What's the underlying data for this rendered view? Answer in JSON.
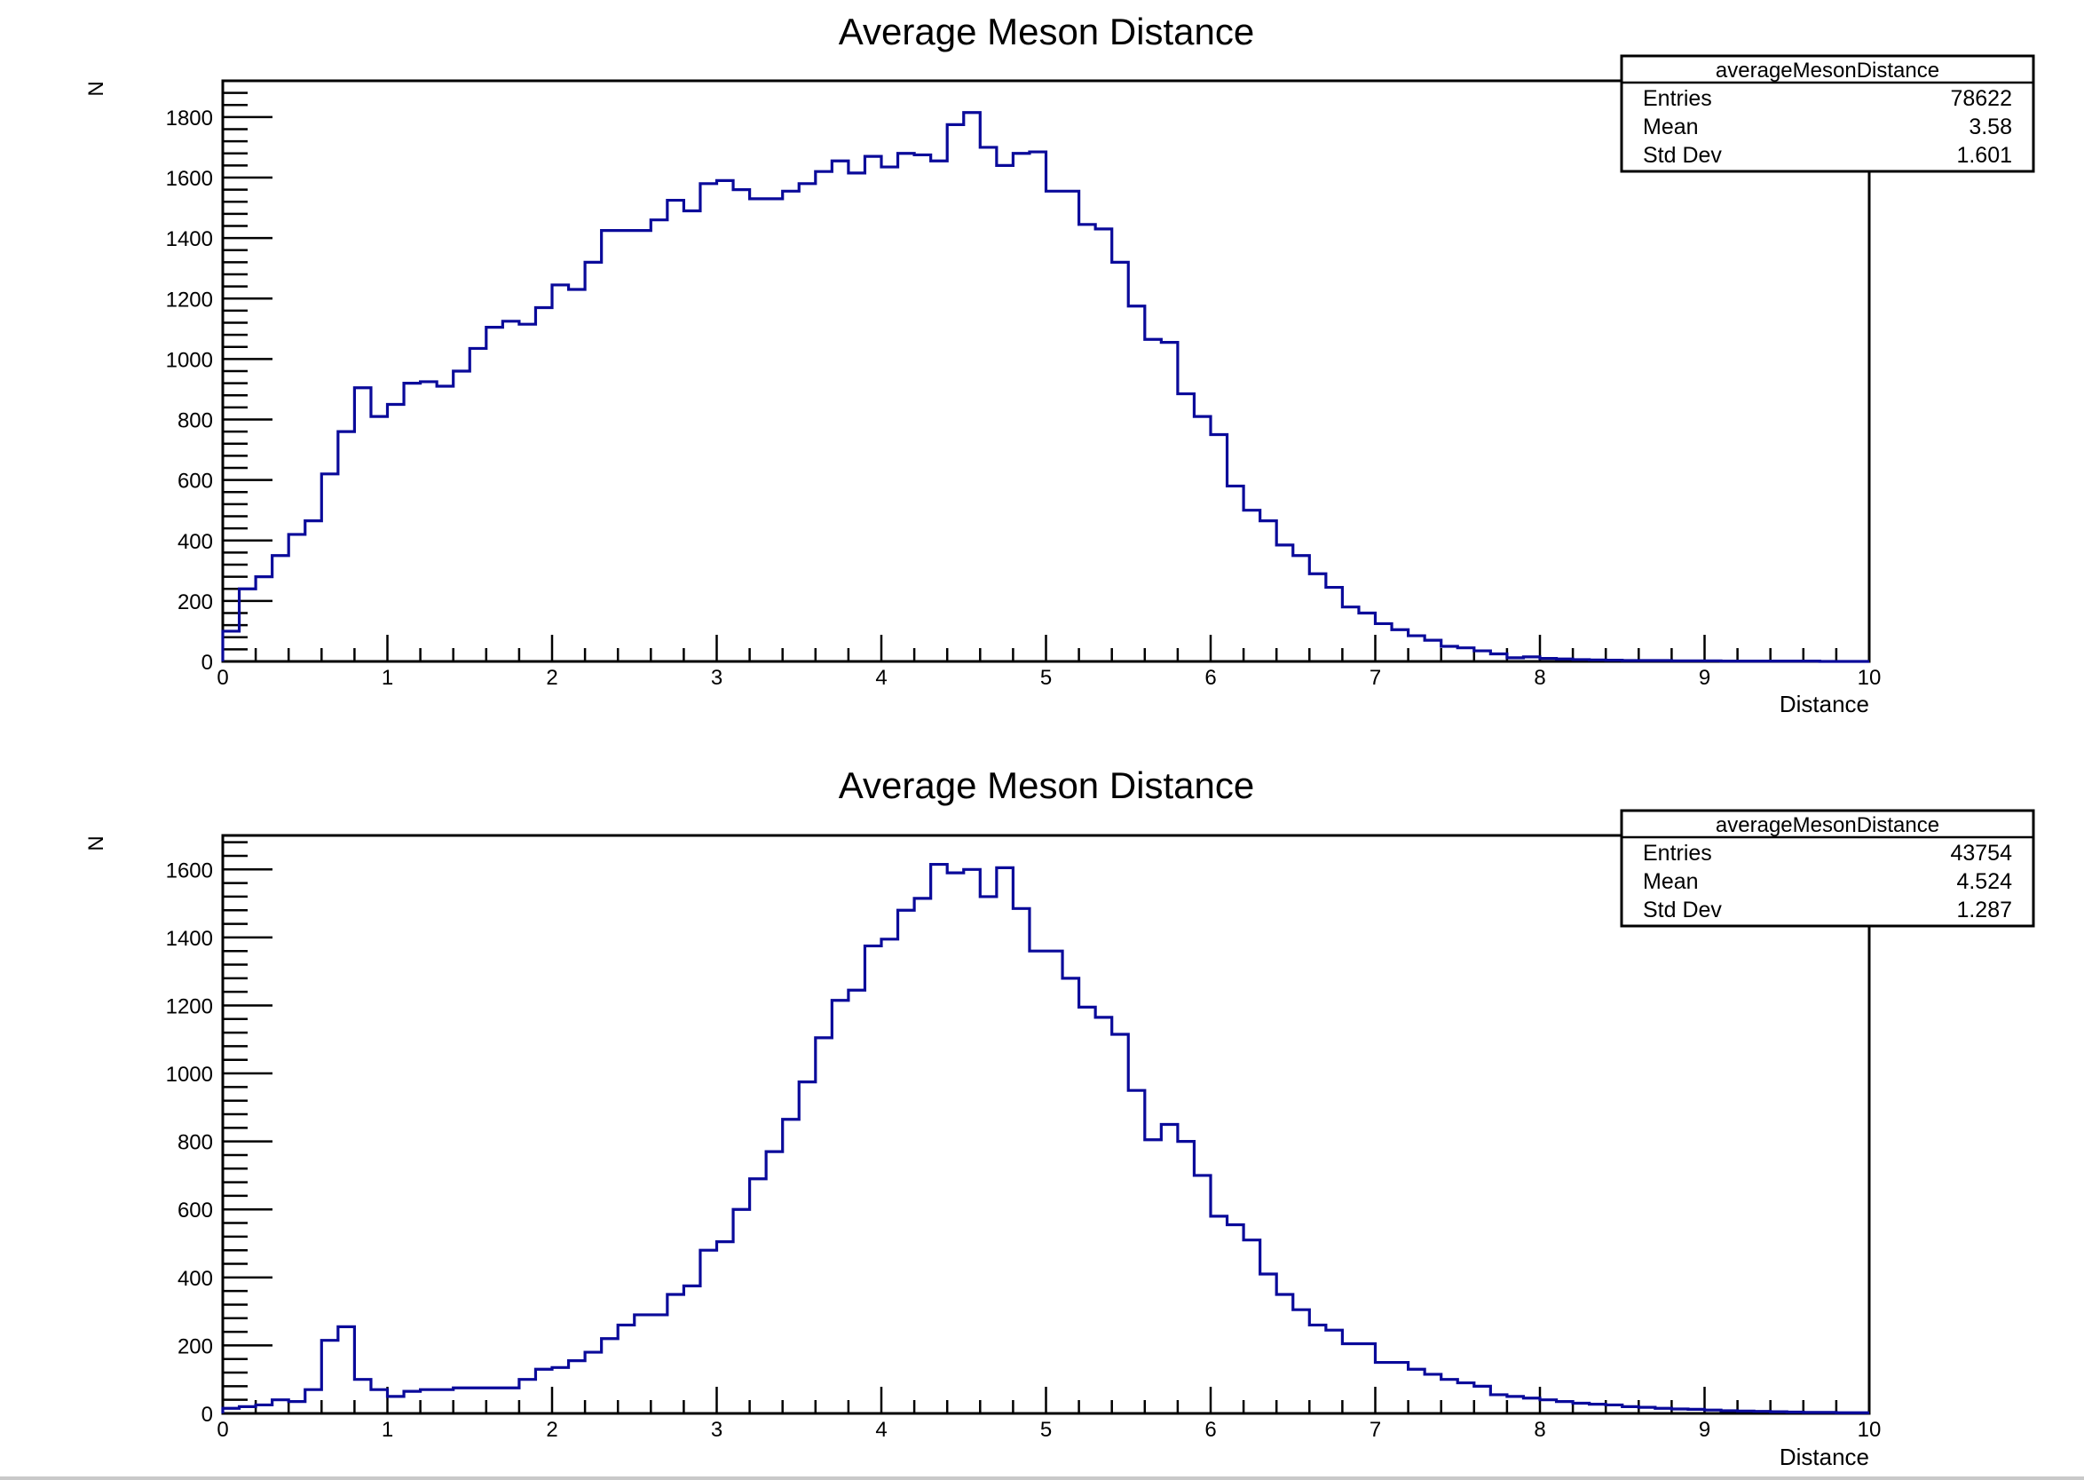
{
  "chart_data": [
    {
      "type": "histogram",
      "title": "Average Meson Distance",
      "xlabel": "Distance",
      "ylabel": "N",
      "xlim": [
        0,
        10
      ],
      "ylim": [
        0,
        1920
      ],
      "x_ticks": [
        0,
        1,
        2,
        3,
        4,
        5,
        6,
        7,
        8,
        9,
        10
      ],
      "y_ticks": [
        0,
        200,
        400,
        600,
        800,
        1000,
        1200,
        1400,
        1600,
        1800
      ],
      "grid": false,
      "bin_width": 0.1,
      "series": [
        {
          "color": "#0a0a9a",
          "values": [
            100,
            240,
            280,
            350,
            420,
            465,
            620,
            760,
            905,
            810,
            850,
            920,
            925,
            910,
            960,
            1035,
            1105,
            1125,
            1115,
            1170,
            1245,
            1230,
            1320,
            1425,
            1425,
            1425,
            1460,
            1525,
            1490,
            1580,
            1590,
            1560,
            1530,
            1530,
            1555,
            1580,
            1620,
            1655,
            1615,
            1670,
            1635,
            1680,
            1675,
            1655,
            1775,
            1815,
            1700,
            1640,
            1680,
            1685,
            1555,
            1555,
            1445,
            1430,
            1320,
            1175,
            1065,
            1055,
            885,
            810,
            750,
            580,
            500,
            465,
            385,
            350,
            290,
            245,
            180,
            160,
            125,
            105,
            85,
            70,
            50,
            45,
            35,
            25,
            12,
            15,
            10,
            8,
            6,
            5,
            4,
            3,
            3,
            3,
            2,
            2,
            2,
            1,
            1,
            1,
            1,
            1,
            1,
            0,
            0,
            0
          ]
        }
      ],
      "stats_box": {
        "title": "averageMesonDistance",
        "rows": [
          {
            "label": "Entries",
            "value": "78622"
          },
          {
            "label": "Mean",
            "value": "3.58"
          },
          {
            "label": "Std Dev",
            "value": "1.601"
          }
        ]
      }
    },
    {
      "type": "histogram",
      "title": "Average Meson Distance",
      "xlabel": "Distance",
      "ylabel": "N",
      "xlim": [
        0,
        10
      ],
      "ylim": [
        0,
        1700
      ],
      "x_ticks": [
        0,
        1,
        2,
        3,
        4,
        5,
        6,
        7,
        8,
        9,
        10
      ],
      "y_ticks": [
        0,
        200,
        400,
        600,
        800,
        1000,
        1200,
        1400,
        1600
      ],
      "grid": false,
      "bin_width": 0.1,
      "series": [
        {
          "color": "#0a0a9a",
          "values": [
            15,
            20,
            25,
            40,
            35,
            70,
            215,
            255,
            100,
            70,
            50,
            65,
            70,
            70,
            75,
            75,
            75,
            75,
            100,
            130,
            135,
            155,
            180,
            220,
            260,
            290,
            290,
            350,
            375,
            480,
            505,
            600,
            690,
            770,
            865,
            975,
            1105,
            1215,
            1245,
            1375,
            1395,
            1480,
            1515,
            1615,
            1590,
            1600,
            1520,
            1605,
            1485,
            1360,
            1360,
            1280,
            1195,
            1165,
            1115,
            950,
            805,
            850,
            800,
            700,
            580,
            555,
            510,
            410,
            350,
            305,
            260,
            245,
            205,
            205,
            150,
            150,
            130,
            115,
            100,
            90,
            80,
            55,
            50,
            45,
            40,
            35,
            30,
            27,
            25,
            20,
            18,
            15,
            13,
            12,
            10,
            8,
            7,
            6,
            5,
            4,
            3,
            3,
            2,
            2
          ]
        }
      ],
      "stats_box": {
        "title": "averageMesonDistance",
        "rows": [
          {
            "label": "Entries",
            "value": "43754"
          },
          {
            "label": "Mean",
            "value": "4.524"
          },
          {
            "label": "Std Dev",
            "value": "1.287"
          }
        ]
      }
    }
  ]
}
